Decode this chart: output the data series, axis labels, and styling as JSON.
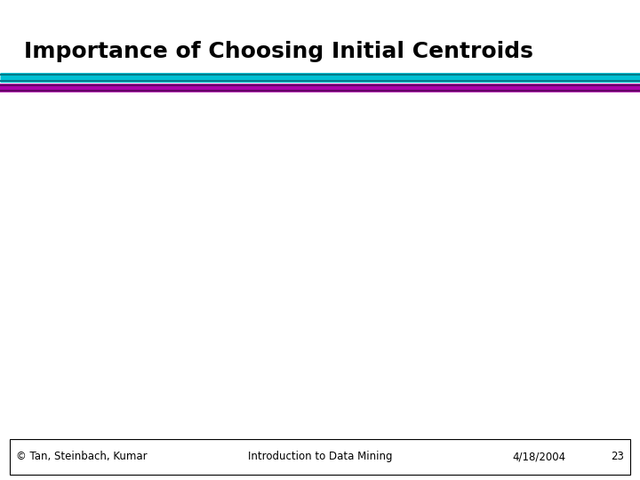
{
  "title": "Importance of Choosing Initial Centroids",
  "title_fontsize": 18,
  "title_fontweight": "bold",
  "title_color": "#000000",
  "title_fontfamily": "sans-serif",
  "bg_color": "#ffffff",
  "line1_color": "#00c0d4",
  "line2_color": "#aa00aa",
  "line3_color": "#000080",
  "footer_left": "© Tan, Steinbach, Kumar",
  "footer_center": "Introduction to Data Mining",
  "footer_right": "4/18/2004",
  "footer_page": "23",
  "footer_fontsize": 8.5,
  "footer_color": "#000000",
  "footer_box_color": "#000000"
}
